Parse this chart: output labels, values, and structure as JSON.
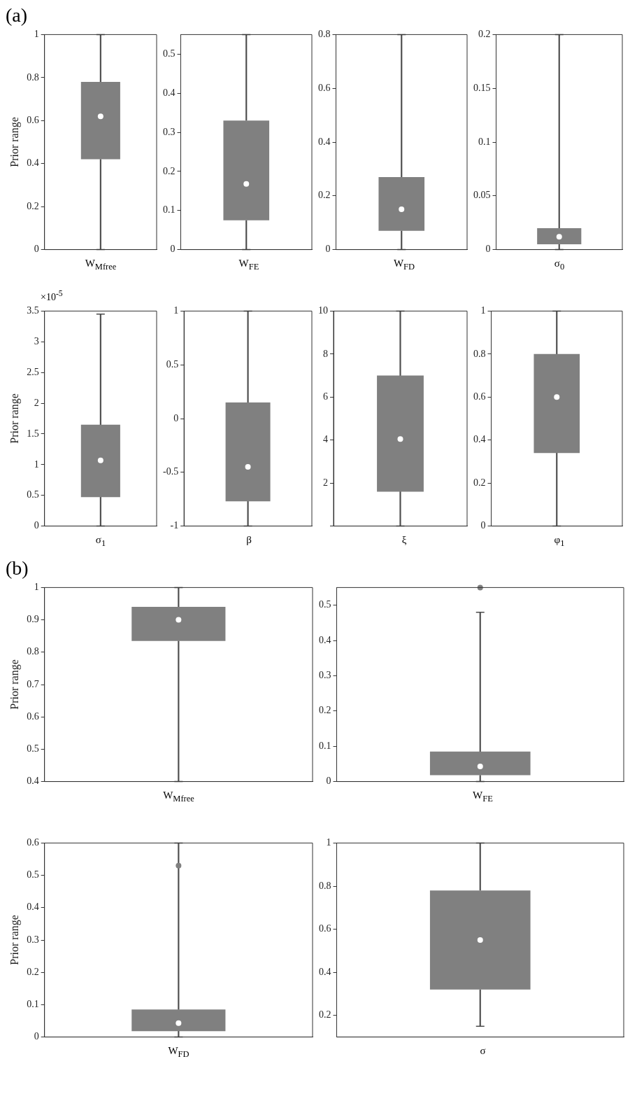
{
  "chart_data": [
    {
      "type": "box",
      "annotations": [
        "(a)"
      ],
      "xlabel": "W$_{Mfree}$",
      "ylabel": "Prior range",
      "categories": [
        null
      ],
      "color": "#808080",
      "boxes": [
        {
          "low": 0,
          "q1": 0.42,
          "median": 0.62,
          "q3": 0.78,
          "high": 1
        }
      ],
      "ylim": [
        0,
        1
      ],
      "yticks": [
        0,
        0.2,
        0.4,
        0.6,
        0.8,
        1
      ],
      "grid": false
    },
    {
      "type": "box",
      "xlabel": "W$_{FE}$",
      "categories": [
        null
      ],
      "color": "#808080",
      "boxes": [
        {
          "low": 0,
          "q1": 0.075,
          "median": 0.168,
          "q3": 0.33,
          "high": 0.55
        }
      ],
      "ylim": [
        0,
        0.55
      ],
      "yticks": [
        0,
        0.1,
        0.2,
        0.3,
        0.4,
        0.5
      ],
      "grid": false
    },
    {
      "type": "box",
      "xlabel": "W$_{FD}$",
      "categories": [
        null
      ],
      "color": "#808080",
      "boxes": [
        {
          "low": 0,
          "q1": 0.07,
          "median": 0.15,
          "q3": 0.27,
          "high": 0.8
        }
      ],
      "ylim": [
        0,
        0.8
      ],
      "yticks": [
        0,
        0.2,
        0.4,
        0.6,
        0.8
      ],
      "grid": false
    },
    {
      "type": "box",
      "xlabel": "σ$_{0}$",
      "categories": [
        null
      ],
      "color": "#808080",
      "boxes": [
        {
          "low": 0,
          "q1": 0.005,
          "median": 0.012,
          "q3": 0.02,
          "high": 0.2
        }
      ],
      "ylim": [
        0,
        0.2
      ],
      "yticks": [
        0,
        0.05,
        0.1,
        0.15,
        0.2
      ],
      "grid": false
    },
    {
      "type": "box",
      "annotations": [
        "×10$^{-5}$"
      ],
      "xlabel": "σ$_{1}$",
      "ylabel": "Prior range",
      "categories": [
        null
      ],
      "color": "#808080",
      "boxes": [
        {
          "low": 0,
          "q1": 0.47,
          "median": 1.07,
          "q3": 1.65,
          "high": 3.45
        }
      ],
      "ylim": [
        0,
        3.5
      ],
      "yticks": [
        0,
        0.5,
        1,
        1.5,
        2,
        2.5,
        3,
        3.5
      ],
      "grid": false
    },
    {
      "type": "box",
      "xlabel": "β",
      "categories": [
        null
      ],
      "color": "#808080",
      "boxes": [
        {
          "low": -1,
          "q1": -0.77,
          "median": -0.45,
          "q3": 0.15,
          "high": 1
        }
      ],
      "ylim": [
        -1,
        1
      ],
      "yticks": [
        -1,
        -0.5,
        0,
        0.5,
        1
      ],
      "grid": false
    },
    {
      "type": "box",
      "xlabel": "ξ",
      "categories": [
        null
      ],
      "color": "#808080",
      "boxes": [
        {
          "low": 0,
          "q1": 1.6,
          "median": 4.05,
          "q3": 7,
          "high": 10
        }
      ],
      "ylim": [
        0,
        10
      ],
      "yticks": [
        {
          "value": 0,
          "label": null
        },
        2,
        4,
        6,
        8,
        10
      ],
      "grid": false
    },
    {
      "type": "box",
      "xlabel": "φ$_{1}$",
      "categories": [
        null
      ],
      "color": "#808080",
      "boxes": [
        {
          "low": 0,
          "q1": 0.34,
          "median": 0.6,
          "q3": 0.8,
          "high": 1
        }
      ],
      "ylim": [
        0,
        1
      ],
      "yticks": [
        0,
        0.2,
        0.4,
        0.6,
        0.8,
        1
      ],
      "grid": false
    },
    {
      "type": "box",
      "annotations": [
        "(b)"
      ],
      "xlabel": "W$_{Mfree}$",
      "ylabel": "Prior range",
      "categories": [
        null
      ],
      "color": "#808080",
      "boxes": [
        {
          "low": 0.4,
          "q1": 0.835,
          "median": 0.9,
          "q3": 0.94,
          "high": 1
        }
      ],
      "ylim": [
        0.4,
        1
      ],
      "yticks": [
        0.4,
        0.5,
        0.6,
        0.7,
        0.8,
        0.9,
        1
      ],
      "grid": false
    },
    {
      "type": "box",
      "xlabel": "W$_{FE}$",
      "categories": [
        null
      ],
      "color": "#808080",
      "boxes": [
        {
          "low": 0,
          "q1": 0.018,
          "median": 0.043,
          "q3": 0.085,
          "high": 0.48,
          "outliers": [
            0.55
          ]
        }
      ],
      "ylim": [
        0,
        0.55
      ],
      "yticks": [
        0,
        0.1,
        0.2,
        0.3,
        0.4,
        0.5
      ],
      "grid": false
    },
    {
      "type": "box",
      "xlabel": "W$_{FD}$",
      "ylabel": "Prior range",
      "categories": [
        null
      ],
      "color": "#808080",
      "boxes": [
        {
          "low": 0,
          "q1": 0.018,
          "median": 0.043,
          "q3": 0.085,
          "high": 0.6,
          "outliers": [
            0.53
          ]
        }
      ],
      "ylim": [
        0,
        0.6
      ],
      "yticks": [
        0,
        0.1,
        0.2,
        0.3,
        0.4,
        0.5,
        0.6
      ],
      "grid": false
    },
    {
      "type": "box",
      "xlabel": "σ",
      "categories": [
        null
      ],
      "color": "#808080",
      "boxes": [
        {
          "low": 0.15,
          "q1": 0.32,
          "median": 0.55,
          "q3": 0.78,
          "high": 1
        }
      ],
      "ylim": [
        0.1,
        1
      ],
      "yticks": [
        0.2,
        0.4,
        0.6,
        0.8,
        1
      ],
      "grid": false
    }
  ]
}
